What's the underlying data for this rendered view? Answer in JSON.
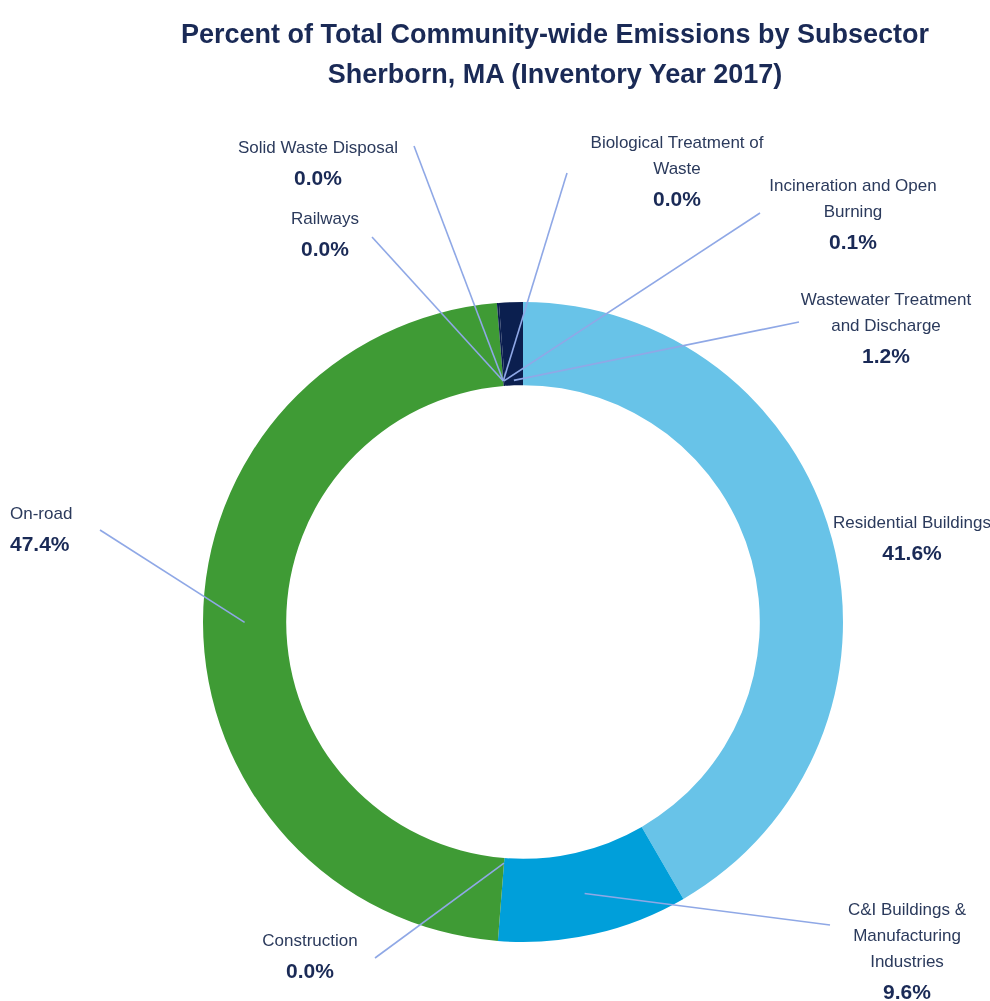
{
  "chart_data": {
    "type": "donut",
    "title": "Percent of Total Community-wide Emissions by Subsector",
    "subtitle": "Sherborn, MA (Inventory Year 2017)",
    "categories": [
      "Residential Buildings",
      "C&I Buildings & Manufacturing Industries",
      "Construction",
      "On-road",
      "Railways",
      "Solid Waste Disposal",
      "Biological Treatment of Waste",
      "Incineration and Open Burning",
      "Wastewater Treatment and Discharge"
    ],
    "values": [
      41.6,
      9.6,
      0.0,
      47.4,
      0.0,
      0.0,
      0.0,
      0.1,
      1.2
    ],
    "colors": [
      "#68c3e8",
      "#009fda",
      "#3f9b35",
      "#3f9b35",
      "#3f9b35",
      "#3f9b35",
      "#0b1f4f",
      "#0b1f4f",
      "#0b1f4f"
    ],
    "value_labels": [
      "41.6%",
      "9.6%",
      "0.0%",
      "47.4%",
      "0.0%",
      "0.0%",
      "0.0%",
      "0.1%",
      "1.2%"
    ],
    "legend": false
  }
}
